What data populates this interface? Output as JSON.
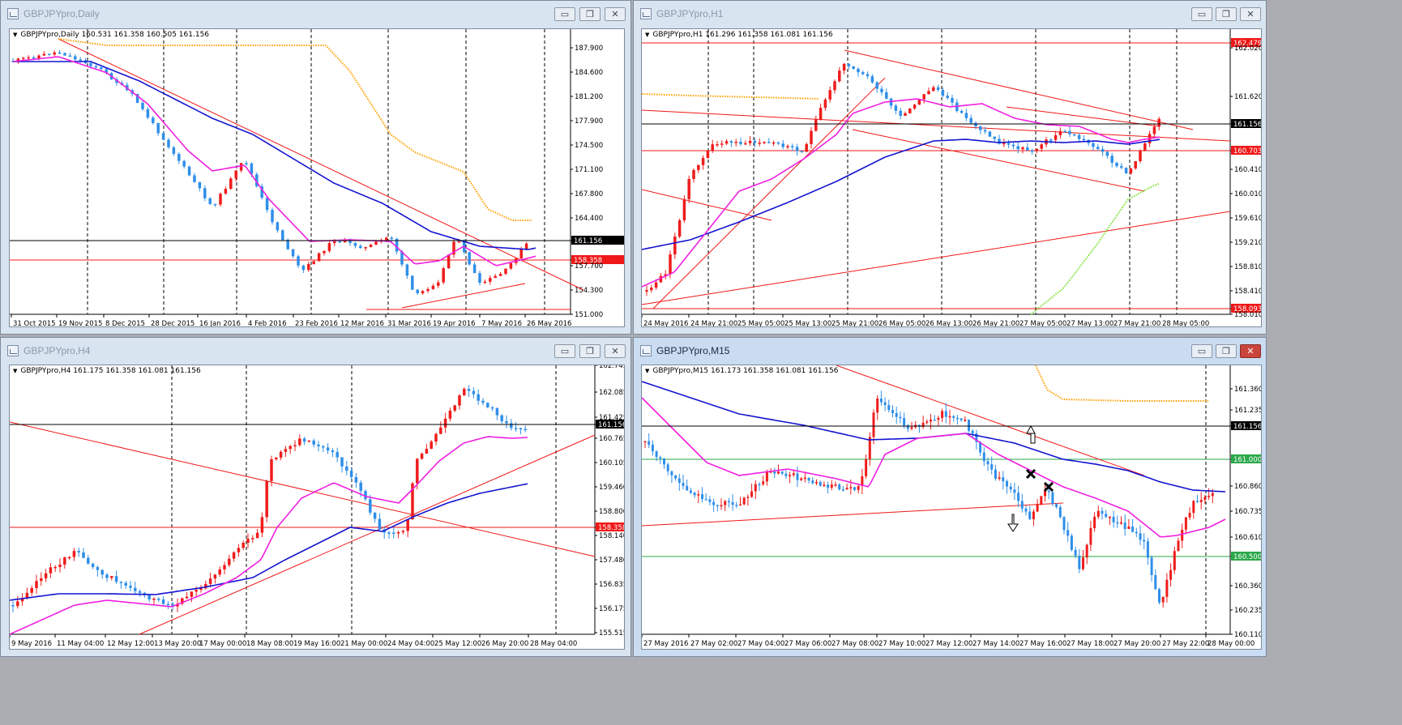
{
  "colors": {
    "bull": "#ef1c1c",
    "bear": "#2f8fe8",
    "ma_blue": "#1414d0",
    "ma_magenta": "#f020e0",
    "ma_orange": "#ffa000",
    "ma_lime": "#7fe037",
    "trend": "#f01818",
    "level_green": "#2aa84a",
    "current_line": "#000000"
  },
  "windows": [
    {
      "id": "daily",
      "title": "GBPJPYpro,Daily",
      "active": false,
      "header": "GBPJPYpro,Daily  160.531 161.358 160.505 161.156",
      "controls": {
        "min": "▭",
        "max": "❐",
        "close": "✕"
      },
      "price_labels": [
        "187.900",
        "184.600",
        "181.200",
        "177.900",
        "174.500",
        "171.100",
        "167.800",
        "164.400",
        "161.156",
        "158.358",
        "157.700",
        "154.300",
        "151.000"
      ],
      "highlight_labels": [
        {
          "text": "161.156",
          "kind": "current"
        },
        {
          "text": "158.358",
          "kind": "red"
        }
      ],
      "time_labels": [
        "31 Oct 2015",
        "19 Nov 2015",
        "8 Dec 2015",
        "28 Dec 2015",
        "16 Jan 2016",
        "4 Feb 2016",
        "23 Feb 2016",
        "12 Mar 2016",
        "31 Mar 2016",
        "19 Apr 2016",
        "7 May 2016",
        "26 May 2016"
      ]
    },
    {
      "id": "h1",
      "title": "GBPJPYpro,H1",
      "active": false,
      "header": "GBPJPYpro,H1  161.296 161.358 161.081 161.156",
      "controls": {
        "min": "▭",
        "max": "❐",
        "close": "✕"
      },
      "price_labels": [
        "162.479",
        "162.020",
        "161.620",
        "161.156",
        "160.703",
        "160.410",
        "160.010",
        "159.610",
        "159.210",
        "158.810",
        "158.410",
        "158.093",
        "158.010"
      ],
      "highlight_labels": [
        {
          "text": "162.479",
          "kind": "red"
        },
        {
          "text": "161.156",
          "kind": "current"
        },
        {
          "text": "160.703",
          "kind": "red"
        },
        {
          "text": "158.093",
          "kind": "red"
        }
      ],
      "time_labels": [
        "24 May 2016",
        "24 May 21:00",
        "25 May 05:00",
        "25 May 13:00",
        "25 May 21:00",
        "26 May 05:00",
        "26 May 13:00",
        "26 May 21:00",
        "27 May 05:00",
        "27 May 13:00",
        "27 May 21:00",
        "28 May 05:00"
      ]
    },
    {
      "id": "h4",
      "title": "GBPJPYpro,H4",
      "active": false,
      "header": "GBPJPYpro,H4  161.175 161.358 161.081 161.156",
      "controls": {
        "min": "▭",
        "max": "❐",
        "close": "✕"
      },
      "price_labels": [
        "162.745",
        "162.085",
        "161.425",
        "161.156",
        "160.765",
        "160.105",
        "159.460",
        "158.800",
        "158.358",
        "158.140",
        "157.480",
        "156.835",
        "156.175",
        "155.515"
      ],
      "highlight_labels": [
        {
          "text": "161.156",
          "kind": "current"
        },
        {
          "text": "158.358",
          "kind": "red"
        }
      ],
      "time_labels": [
        "9 May 2016",
        "11 May 04:00",
        "12 May 12:00",
        "13 May 20:00",
        "17 May 00:00",
        "18 May 08:00",
        "19 May 16:00",
        "21 May 00:00",
        "24 May 04:00",
        "25 May 12:00",
        "26 May 20:00",
        "28 May 04:00"
      ]
    },
    {
      "id": "m15",
      "title": "GBPJPYpro,M15",
      "active": true,
      "header": "GBPJPYpro,M15  161.173 161.358 161.081 161.156",
      "controls": {
        "min": "▭",
        "max": "❐",
        "close": "✕"
      },
      "price_labels": [
        "161.360",
        "161.235",
        "161.156",
        "161.000",
        "160.860",
        "160.735",
        "160.610",
        "160.500",
        "160.360",
        "160.235",
        "160.110"
      ],
      "highlight_labels": [
        {
          "text": "161.156",
          "kind": "current"
        },
        {
          "text": "161.000",
          "kind": "green"
        },
        {
          "text": "160.500",
          "kind": "green"
        }
      ],
      "time_labels": [
        "27 May 2016",
        "27 May 02:00",
        "27 May 04:00",
        "27 May 06:00",
        "27 May 08:00",
        "27 May 10:00",
        "27 May 12:00",
        "27 May 14:00",
        "27 May 16:00",
        "27 May 18:00",
        "27 May 20:00",
        "27 May 22:00",
        "28 May 00:00"
      ]
    }
  ]
}
